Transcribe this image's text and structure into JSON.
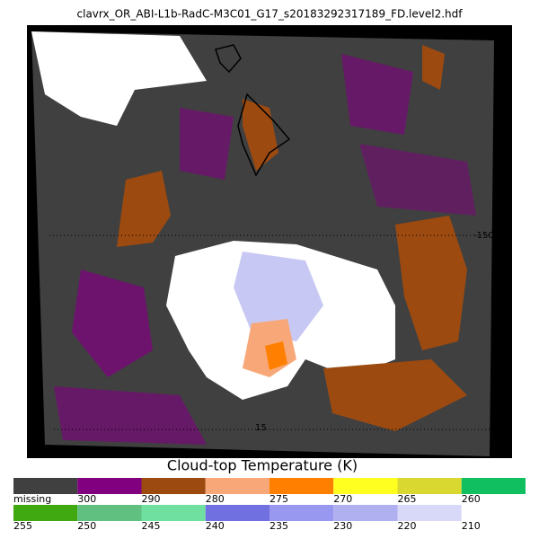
{
  "title": "clavrx_OR_ABI-L1b-RadC-M3C01_G17_s20183292317189_FD.level2.hdf",
  "map_labels": {
    "lon": "-150",
    "lat": "15"
  },
  "legend": {
    "title": "Cloud-top Temperature (K)",
    "rows": [
      [
        {
          "label": "missing",
          "color": "#404040"
        },
        {
          "label": "300",
          "color": "#800080"
        },
        {
          "label": "290",
          "color": "#9c4a10"
        },
        {
          "label": "280",
          "color": "#f8a878"
        },
        {
          "label": "275",
          "color": "#ff8000"
        },
        {
          "label": "270",
          "color": "#ffff20"
        },
        {
          "label": "265",
          "color": "#d8d830"
        },
        {
          "label": "260",
          "color": "#10c060"
        }
      ],
      [
        {
          "label": "255",
          "color": "#40a810"
        },
        {
          "label": "250",
          "color": "#60c080"
        },
        {
          "label": "245",
          "color": "#70e0a0"
        },
        {
          "label": "240",
          "color": "#7070e0"
        },
        {
          "label": "235",
          "color": "#9898f0"
        },
        {
          "label": "230",
          "color": "#b0b0f0"
        },
        {
          "label": "220",
          "color": "#d8d8f8"
        },
        {
          "label": "210",
          "color": "#ffffff"
        }
      ]
    ]
  }
}
